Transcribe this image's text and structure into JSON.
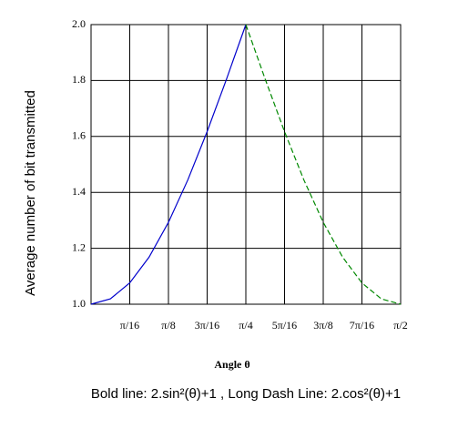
{
  "chart_data": {
    "type": "line",
    "xlabel": "Angle θ",
    "ylabel": "Average number of bit transmitted",
    "caption": "Bold line: 2.sin²(θ)+1 , Long Dash Line: 2.cos²(θ)+1",
    "xlim": [
      0,
      1.5708
    ],
    "ylim": [
      1,
      2
    ],
    "xticks": [
      {
        "value": 0.1963,
        "label": "π/16"
      },
      {
        "value": 0.3927,
        "label": "π/8"
      },
      {
        "value": 0.589,
        "label": "3π/16"
      },
      {
        "value": 0.7854,
        "label": "π/4"
      },
      {
        "value": 0.9817,
        "label": "5π/16"
      },
      {
        "value": 1.1781,
        "label": "3π/8"
      },
      {
        "value": 1.3744,
        "label": "7π/16"
      },
      {
        "value": 1.5708,
        "label": "π/2"
      }
    ],
    "yticks": [
      {
        "value": 1,
        "label": "1.0"
      },
      1.2,
      1.4,
      1.6,
      1.8,
      {
        "value": 2,
        "label": "2.0"
      }
    ],
    "grid": true,
    "series": [
      {
        "color": "#0000cc",
        "dash": false,
        "x": [
          0,
          0.0982,
          0.1963,
          0.2945,
          0.3927,
          0.4909,
          0.589,
          0.6872,
          0.7854
        ],
        "values": [
          1.0,
          1.0192,
          1.0761,
          1.1685,
          1.2929,
          1.4444,
          1.6173,
          1.8049,
          2.0
        ]
      },
      {
        "color": "#008800",
        "dash": true,
        "x": [
          0.7854,
          0.8836,
          0.9817,
          1.0799,
          1.1781,
          1.2763,
          1.3744,
          1.4726,
          1.5708
        ],
        "values": [
          2.0,
          1.8049,
          1.6173,
          1.4444,
          1.2929,
          1.1685,
          1.0761,
          1.0192,
          1.0
        ]
      }
    ]
  }
}
